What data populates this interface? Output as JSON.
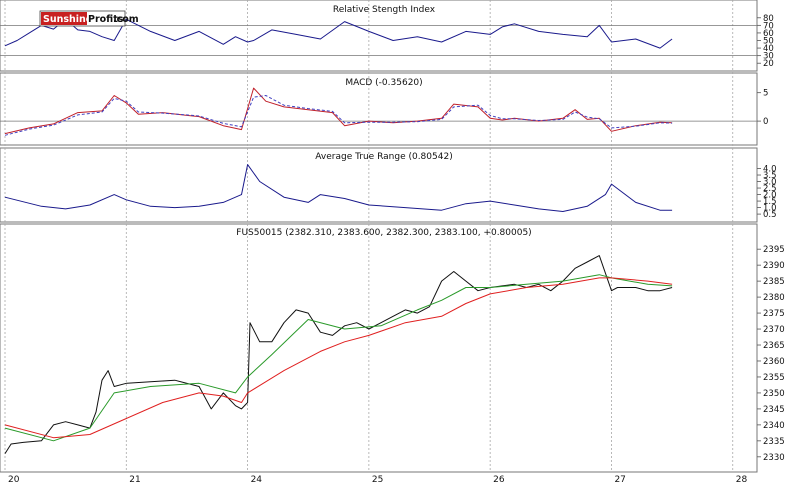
{
  "logo": {
    "part1": "Sunshine",
    "part2": "Profits",
    "suffix": ".com"
  },
  "chart_data": [
    {
      "type": "line",
      "title": "Relative Stength Index",
      "ylim": [
        15,
        85
      ],
      "yticks": [
        20,
        30,
        40,
        50,
        60,
        70,
        80
      ],
      "reference_lines": [
        30,
        70
      ],
      "series": [
        {
          "color": "#1a1a8c",
          "x": [
            0.0,
            0.1,
            0.2,
            0.3,
            0.4,
            0.5,
            0.6,
            0.7,
            0.8,
            0.9,
            1.0,
            1.2,
            1.4,
            1.6,
            1.8,
            1.9,
            2.0,
            2.05,
            2.2,
            2.4,
            2.6,
            2.8,
            3.0,
            3.2,
            3.4,
            3.6,
            3.8,
            4.0,
            4.1,
            4.2,
            4.4,
            4.6,
            4.8,
            4.9,
            5.0,
            5.2,
            5.4,
            5.5
          ],
          "values": [
            43,
            50,
            60,
            70,
            65,
            78,
            64,
            62,
            55,
            50,
            78,
            62,
            50,
            62,
            45,
            55,
            48,
            50,
            64,
            58,
            52,
            75,
            62,
            50,
            55,
            48,
            62,
            58,
            68,
            72,
            62,
            58,
            55,
            70,
            48,
            52,
            40,
            52
          ]
        }
      ]
    },
    {
      "type": "line",
      "title": "MACD (-0.35620)",
      "ylim": [
        -3.5,
        6
      ],
      "yticks": [
        0,
        5
      ],
      "reference_lines": [
        0
      ],
      "series": [
        {
          "color": "#c0202a",
          "x": [
            0.0,
            0.2,
            0.4,
            0.6,
            0.8,
            0.9,
            1.0,
            1.1,
            1.3,
            1.5,
            1.6,
            1.8,
            1.95,
            2.05,
            2.15,
            2.3,
            2.5,
            2.7,
            2.8,
            3.0,
            3.2,
            3.4,
            3.6,
            3.7,
            3.9,
            4.0,
            4.1,
            4.2,
            4.4,
            4.6,
            4.7,
            4.8,
            4.9,
            5.0,
            5.2,
            5.4,
            5.5
          ],
          "values": [
            -2.2,
            -1.2,
            -0.5,
            1.5,
            1.8,
            4.5,
            3.2,
            1.2,
            1.5,
            1.0,
            0.8,
            -0.8,
            -1.5,
            5.8,
            3.5,
            2.5,
            2.0,
            1.5,
            -0.8,
            0.0,
            -0.3,
            0.0,
            0.5,
            3.0,
            2.5,
            0.5,
            0.2,
            0.5,
            0.0,
            0.5,
            2.0,
            0.3,
            0.5,
            -1.8,
            -0.8,
            -0.2,
            -0.3
          ]
        },
        {
          "color": "#4040c0",
          "dashed": true,
          "x": [
            0.0,
            0.2,
            0.4,
            0.6,
            0.8,
            0.9,
            1.0,
            1.1,
            1.3,
            1.5,
            1.6,
            1.8,
            1.95,
            2.05,
            2.15,
            2.3,
            2.5,
            2.7,
            2.8,
            3.0,
            3.2,
            3.4,
            3.6,
            3.7,
            3.9,
            4.0,
            4.1,
            4.2,
            4.4,
            4.6,
            4.7,
            4.8,
            4.9,
            5.0,
            5.2,
            5.4,
            5.5
          ],
          "values": [
            -2.5,
            -1.4,
            -0.7,
            1.1,
            1.6,
            4.0,
            3.5,
            1.6,
            1.4,
            1.1,
            0.9,
            -0.4,
            -1.0,
            4.2,
            4.5,
            2.8,
            2.2,
            1.7,
            -0.3,
            -0.2,
            -0.2,
            -0.1,
            0.3,
            2.5,
            2.8,
            1.0,
            0.4,
            0.4,
            0.1,
            0.3,
            1.6,
            0.7,
            0.4,
            -1.2,
            -0.9,
            -0.3,
            -0.35
          ]
        }
      ]
    },
    {
      "type": "line",
      "title": "Average True Range (0.80542)",
      "ylim": [
        0.2,
        4.5
      ],
      "yticks": [
        0.5,
        1.0,
        1.5,
        2.0,
        2.5,
        3.0,
        3.5,
        4.0
      ],
      "yticklabels": [
        "0.5",
        "1.0",
        "1.5",
        "2.0",
        "2.5",
        "3.0",
        "3.5",
        "4.0"
      ],
      "series": [
        {
          "color": "#1a1a8c",
          "x": [
            0.0,
            0.3,
            0.5,
            0.7,
            0.9,
            1.0,
            1.2,
            1.4,
            1.6,
            1.8,
            1.95,
            2.0,
            2.1,
            2.3,
            2.5,
            2.6,
            2.8,
            3.0,
            3.3,
            3.6,
            3.8,
            4.0,
            4.2,
            4.4,
            4.6,
            4.8,
            4.95,
            5.0,
            5.2,
            5.4,
            5.5
          ],
          "values": [
            1.8,
            1.1,
            0.9,
            1.2,
            2.0,
            1.6,
            1.1,
            1.0,
            1.1,
            1.4,
            2.0,
            4.3,
            3.0,
            1.8,
            1.4,
            2.0,
            1.7,
            1.2,
            1.0,
            0.8,
            1.3,
            1.5,
            1.2,
            0.9,
            0.7,
            1.1,
            2.0,
            2.8,
            1.4,
            0.8,
            0.8
          ]
        }
      ]
    },
    {
      "type": "line",
      "title": "FUS50015 (2382.310, 2383.600, 2382.300, 2383.100, +0.80005)",
      "x_tick_labels": [
        "20",
        "21",
        "24",
        "25",
        "26",
        "27",
        "28"
      ],
      "xlim": [
        0,
        6.2
      ],
      "ylim": [
        2326.5,
        2398.5
      ],
      "yticks": [
        2330,
        2335,
        2340,
        2345,
        2350,
        2355,
        2360,
        2365,
        2370,
        2375,
        2380,
        2385,
        2390,
        2395
      ],
      "series": [
        {
          "color": "#111111",
          "x": [
            0.0,
            0.05,
            0.15,
            0.3,
            0.4,
            0.5,
            0.6,
            0.7,
            0.75,
            0.8,
            0.85,
            0.9,
            1.0,
            1.2,
            1.4,
            1.6,
            1.7,
            1.8,
            1.9,
            1.95,
            2.0,
            2.02,
            2.1,
            2.2,
            2.3,
            2.4,
            2.5,
            2.6,
            2.7,
            2.8,
            2.9,
            3.0,
            3.1,
            3.2,
            3.3,
            3.4,
            3.5,
            3.6,
            3.7,
            3.8,
            3.9,
            4.0,
            4.1,
            4.2,
            4.3,
            4.4,
            4.5,
            4.6,
            4.7,
            4.8,
            4.9,
            5.0,
            5.05,
            5.2,
            5.3,
            5.4,
            5.5
          ],
          "values": [
            2331,
            2334,
            2334.5,
            2335,
            2340,
            2341,
            2340,
            2339,
            2344,
            2354,
            2357,
            2352,
            2353,
            2353.5,
            2354,
            2352,
            2345,
            2350,
            2346,
            2345,
            2347,
            2372,
            2366,
            2366,
            2372,
            2376,
            2375,
            2369,
            2368,
            2371,
            2372,
            2370,
            2372,
            2374,
            2376,
            2375,
            2377,
            2385,
            2388,
            2385,
            2382,
            2383,
            2383.5,
            2384,
            2383,
            2384,
            2382,
            2385,
            2389,
            2391,
            2393,
            2382,
            2383,
            2383,
            2382,
            2382,
            2383
          ]
        },
        {
          "color": "#2a9a2a",
          "x": [
            0.0,
            0.4,
            0.7,
            0.9,
            1.2,
            1.6,
            1.9,
            2.0,
            2.2,
            2.5,
            2.8,
            3.1,
            3.4,
            3.6,
            3.8,
            4.0,
            4.3,
            4.6,
            4.9,
            5.0,
            5.3,
            5.5
          ],
          "values": [
            2339,
            2335,
            2339,
            2350,
            2352,
            2353,
            2350,
            2355,
            2362,
            2373,
            2370,
            2371,
            2376,
            2379,
            2383,
            2383,
            2384,
            2385,
            2387,
            2386,
            2384,
            2383.5
          ]
        },
        {
          "color": "#e02020",
          "x": [
            0.0,
            0.4,
            0.7,
            1.0,
            1.3,
            1.6,
            1.8,
            1.95,
            2.0,
            2.3,
            2.6,
            2.8,
            3.0,
            3.3,
            3.6,
            3.8,
            4.0,
            4.3,
            4.6,
            4.9,
            5.0,
            5.3,
            5.5
          ],
          "values": [
            2340,
            2336,
            2337,
            2342,
            2347,
            2350,
            2349,
            2347,
            2350,
            2357,
            2363,
            2366,
            2368,
            2372,
            2374,
            2378,
            2381,
            2383,
            2384,
            2386,
            2386,
            2385,
            2384
          ]
        }
      ]
    }
  ]
}
